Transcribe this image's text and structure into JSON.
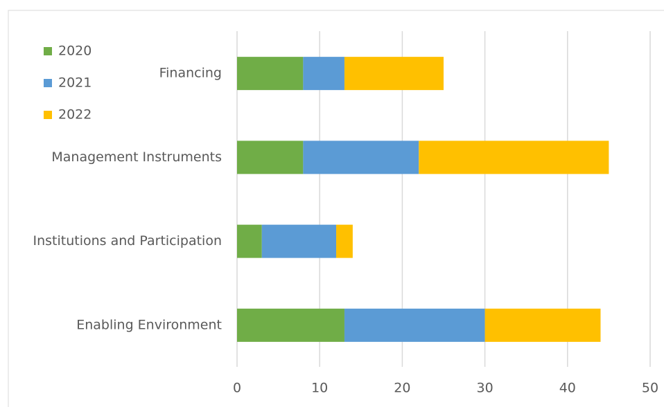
{
  "chart_data": {
    "type": "bar",
    "orientation": "horizontal",
    "stacked": true,
    "categories": [
      "Financing",
      "Management Instruments",
      "Institutions and Participation",
      "Enabling Environment"
    ],
    "series": [
      {
        "name": "2020",
        "color": "#70ad47",
        "values": [
          8,
          8,
          3,
          13
        ]
      },
      {
        "name": "2021",
        "color": "#5b9bd5",
        "values": [
          5,
          14,
          9,
          17
        ]
      },
      {
        "name": "2022",
        "color": "#ffc000",
        "values": [
          12,
          23,
          2,
          14
        ]
      }
    ],
    "xlim": [
      0,
      50
    ],
    "xticks": [
      0,
      10,
      20,
      30,
      40,
      50
    ],
    "grid": true,
    "legend": "top-left"
  }
}
